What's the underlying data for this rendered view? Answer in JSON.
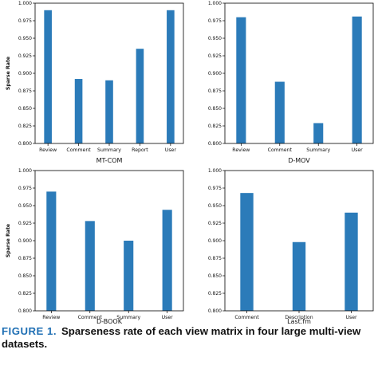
{
  "caption": {
    "label": "FIGURE 1.",
    "text": "Sparseness rate of each view matrix in four large multi-view datasets."
  },
  "style": {
    "bar_color": "#2b7bb9"
  },
  "chart_data": [
    {
      "type": "bar",
      "title": "MT-COM",
      "ylabel": "Sparse Rate",
      "ylim": [
        0.8,
        1.0
      ],
      "yticks": [
        "0.800",
        "0.825",
        "0.850",
        "0.875",
        "0.900",
        "0.925",
        "0.950",
        "0.975",
        "1.000"
      ],
      "categories": [
        "Review",
        "Comment",
        "Summary",
        "Report",
        "User"
      ],
      "values": [
        0.99,
        0.892,
        0.89,
        0.935,
        0.99
      ]
    },
    {
      "type": "bar",
      "title": "D-MOV",
      "ylabel": "",
      "ylim": [
        0.8,
        1.0
      ],
      "yticks": [
        "0.800",
        "0.825",
        "0.850",
        "0.875",
        "0.900",
        "0.925",
        "0.950",
        "0.975",
        "1.000"
      ],
      "categories": [
        "Review",
        "Comment",
        "Summary",
        "User"
      ],
      "values": [
        0.98,
        0.888,
        0.829,
        0.981
      ]
    },
    {
      "type": "bar",
      "title": "D-BOOK",
      "ylabel": "Sparse Rate",
      "ylim": [
        0.8,
        1.0
      ],
      "yticks": [
        "0.800",
        "0.825",
        "0.850",
        "0.875",
        "0.900",
        "0.925",
        "0.950",
        "0.975",
        "1.000"
      ],
      "categories": [
        "Review",
        "Comment",
        "Summary",
        "User"
      ],
      "values": [
        0.97,
        0.928,
        0.9,
        0.944
      ]
    },
    {
      "type": "bar",
      "title": "Last.fm",
      "ylabel": "",
      "ylim": [
        0.8,
        1.0
      ],
      "yticks": [
        "0.800",
        "0.825",
        "0.850",
        "0.875",
        "0.900",
        "0.925",
        "0.950",
        "0.975",
        "1.000"
      ],
      "categories": [
        "Comment",
        "Description",
        "User"
      ],
      "values": [
        0.968,
        0.898,
        0.94
      ]
    }
  ]
}
